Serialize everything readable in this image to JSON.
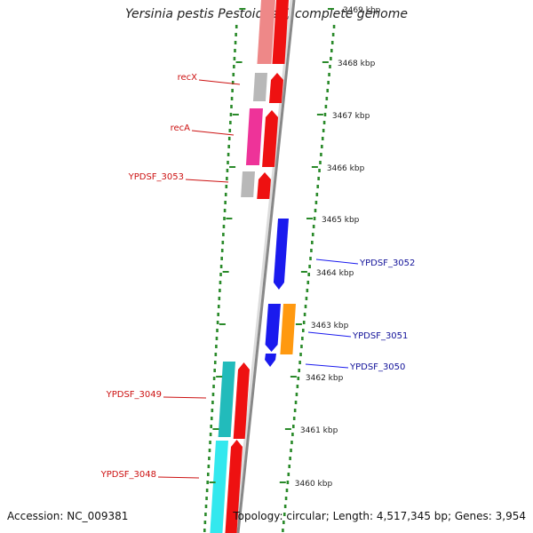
{
  "title": "Yersinia pestis Pestoides F, complete genome",
  "footer": {
    "accession": "Accession: NC_009381",
    "info": "Topology: circular; Length: 4,517,345 bp; Genes: 3,954"
  },
  "ticks": [
    {
      "label": "3469 kbp",
      "pos": 3469
    },
    {
      "label": "3468 kbp",
      "pos": 3468
    },
    {
      "label": "3467 kbp",
      "pos": 3467
    },
    {
      "label": "3466 kbp",
      "pos": 3466
    },
    {
      "label": "3465 kbp",
      "pos": 3465
    },
    {
      "label": "3464 kbp",
      "pos": 3464
    },
    {
      "label": "3463 kbp",
      "pos": 3463
    },
    {
      "label": "3462 kbp",
      "pos": 3462
    },
    {
      "label": "3461 kbp",
      "pos": 3461
    },
    {
      "label": "3460 kbp",
      "pos": 3460
    }
  ],
  "genes_left": [
    {
      "name": "recX"
    },
    {
      "name": "recA"
    },
    {
      "name": "YPDSF_3053"
    },
    {
      "name": "YPDSF_3049"
    },
    {
      "name": "YPDSF_3048"
    }
  ],
  "genes_right": [
    {
      "name": "YPDSF_3052"
    },
    {
      "name": "YPDSF_3051"
    },
    {
      "name": "YPDSF_3050"
    }
  ],
  "colors": {
    "forward": "#ee1111",
    "reverse": "#1a1aee",
    "label_left": "#cc1111",
    "label_right": "#111199",
    "backbone": "#888888",
    "tick_dot": "#2a8a2a",
    "cog_pink": "#ee3399",
    "cog_gray": "#b8b8b8",
    "cog_cyan": "#22bbbb",
    "cog_lightcyan": "#33e8ee",
    "cog_orange": "#ff9910",
    "cog_salmon": "#ee8888"
  }
}
